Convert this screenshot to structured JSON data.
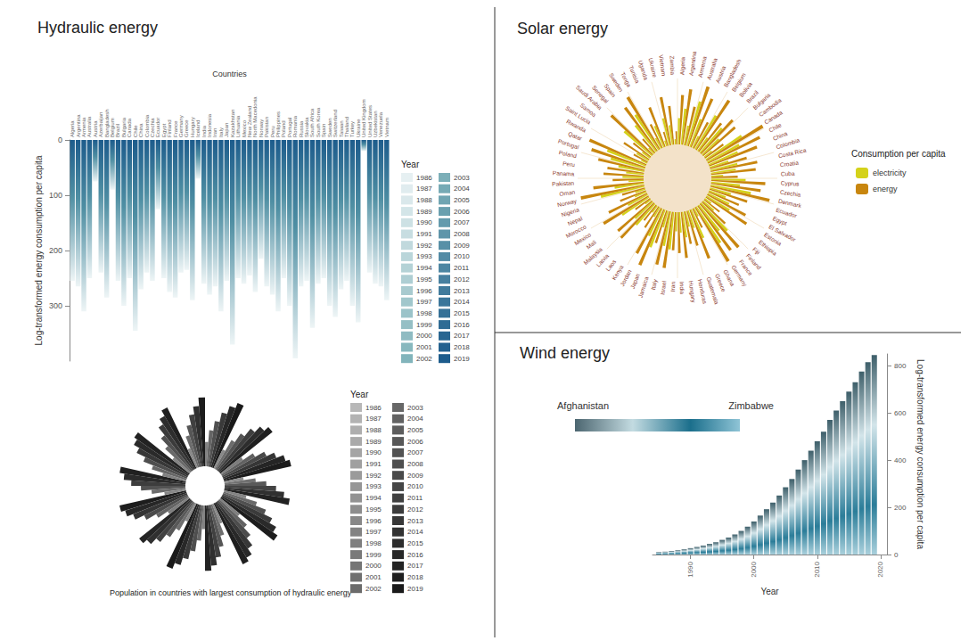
{
  "chart_data": [
    {
      "type": "bar",
      "title": "Hydraulic energy",
      "x_label": "Countries",
      "y_label": "Log-transformed energy consumption per capita",
      "categories": [
        "Algeria",
        "Argentina",
        "Armenia",
        "Australia",
        "Austria",
        "Azerbaijan",
        "Bangladesh",
        "Belgium",
        "Brazil",
        "Bulgaria",
        "Canada",
        "Chile",
        "China",
        "Colombia",
        "Czechia",
        "Ecuador",
        "Egypt",
        "Finland",
        "France",
        "Germany",
        "Greece",
        "Hungary",
        "Iceland",
        "India",
        "Indonesia",
        "Iran",
        "Italy",
        "Japan",
        "Kazakhstan",
        "Lithuania",
        "Mexico",
        "New Zealand",
        "North Macedonia",
        "Norway",
        "Pakistan",
        "Peru",
        "Philippines",
        "Poland",
        "Portugal",
        "Romania",
        "Russia",
        "Slovakia",
        "South Africa",
        "South Korea",
        "Spain",
        "Sweden",
        "Switzerland",
        "Taiwan",
        "Thailand",
        "Turkey",
        "Ukraine",
        "United Kingdom",
        "United States",
        "Uzbekistan",
        "Venezuela",
        "Vietnam"
      ],
      "values": [
        255,
        265,
        310,
        250,
        75,
        240,
        285,
        90,
        255,
        300,
        250,
        345,
        270,
        240,
        255,
        125,
        250,
        275,
        285,
        240,
        235,
        290,
        70,
        260,
        280,
        265,
        310,
        255,
        370,
        250,
        260,
        245,
        275,
        215,
        265,
        280,
        310,
        250,
        300,
        395,
        265,
        255,
        340,
        260,
        250,
        300,
        320,
        270,
        255,
        300,
        330,
        20,
        240,
        260,
        265,
        290
      ],
      "ylim": [
        0,
        400
      ],
      "yticks": [
        0,
        100,
        200,
        300
      ],
      "grid": false,
      "legend_title": "Year",
      "legend_items": [
        1986,
        1987,
        1988,
        1989,
        1990,
        1991,
        1992,
        1993,
        1994,
        1995,
        1996,
        1997,
        1998,
        1999,
        2000,
        2001,
        2002,
        2003,
        2004,
        2005,
        2006,
        2007,
        2008,
        2009,
        2010,
        2011,
        2012,
        2013,
        2014,
        2015,
        2016,
        2017,
        2018,
        2019
      ]
    },
    {
      "type": "polar_bar",
      "title": "Population in countries with largest consumption of hydraulic energy",
      "tick_labels": false,
      "values": [
        35,
        52,
        66,
        80,
        92,
        100,
        30,
        48,
        63,
        77,
        88,
        96,
        38,
        55,
        70,
        82,
        93,
        99,
        28,
        45,
        60,
        74,
        86,
        95,
        33,
        50,
        66,
        79,
        90,
        98,
        36,
        54,
        68,
        81,
        91,
        97,
        30,
        47,
        62,
        76,
        87,
        94,
        34,
        51,
        67,
        80,
        91,
        100,
        29,
        46,
        61,
        75,
        86,
        93,
        37,
        53,
        69,
        83,
        92,
        98,
        31,
        49,
        64,
        78,
        89,
        96,
        35,
        52,
        67,
        81,
        90,
        95,
        32,
        50,
        65,
        79,
        88,
        97,
        30,
        48,
        62,
        76,
        87,
        99
      ],
      "legend_title": "Year",
      "legend_items": [
        1986,
        1987,
        1988,
        1989,
        1990,
        1991,
        1992,
        1993,
        1994,
        1995,
        1996,
        1997,
        1998,
        1999,
        2000,
        2001,
        2002,
        2003,
        2004,
        2005,
        2006,
        2007,
        2008,
        2009,
        2010,
        2011,
        2012,
        2013,
        2014,
        2015,
        2016,
        2017,
        2018,
        2019
      ]
    },
    {
      "type": "polar_bar",
      "title": "Solar energy",
      "tick_labels": "x",
      "legend": "right",
      "legend_title": "Consumption per capita",
      "categories": [
        "Algeria",
        "Argentina",
        "Armenia",
        "Australia",
        "Austria",
        "Bangladesh",
        "Belgium",
        "Bolivia",
        "Brazil",
        "Bulgaria",
        "Cambodia",
        "Canada",
        "Chile",
        "China",
        "Colombia",
        "Costa Rica",
        "Croatia",
        "Cuba",
        "Cyprus",
        "Czechia",
        "Denmark",
        "Ecuador",
        "Egypt",
        "El Salvador",
        "Estonia",
        "Ethiopia",
        "Fiji",
        "Finland",
        "France",
        "Germany",
        "Ghana",
        "Greece",
        "Guatemala",
        "Honduras",
        "Hungary",
        "India",
        "Iran",
        "Israel",
        "Italy",
        "Jamaica",
        "Japan",
        "Jordan",
        "Kenya",
        "Laos",
        "Latvia",
        "Malaysia",
        "Mali",
        "Mexico",
        "Morocco",
        "Nepal",
        "Nigeria",
        "Norway",
        "Oman",
        "Pakistan",
        "Panama",
        "Peru",
        "Poland",
        "Portugal",
        "Qatar",
        "Rwanda",
        "Saint Lucia",
        "Samoa",
        "Saudi Arabia",
        "Senegal",
        "Spain",
        "Sweden",
        "Tonga",
        "Tunisia",
        "Uganda",
        "Ukraine",
        "Vietnam",
        "Zambia"
      ],
      "series": [
        {
          "name": "electricity",
          "color": "#d4d21a",
          "values": [
            40,
            55,
            30,
            70,
            45,
            20,
            60,
            25,
            50,
            35,
            15,
            65,
            55,
            48,
            30,
            42,
            38,
            18,
            52,
            44,
            62,
            33,
            27,
            36,
            41,
            12,
            22,
            58,
            50,
            66,
            14,
            47,
            28,
            24,
            39,
            31,
            29,
            57,
            53,
            26,
            61,
            46,
            17,
            13,
            43,
            37,
            11,
            49,
            34,
            19,
            16,
            68,
            45,
            23,
            32,
            27,
            40,
            54,
            63,
            10,
            21,
            15,
            56,
            12,
            51,
            64,
            18,
            35,
            9,
            42,
            30,
            8
          ]
        },
        {
          "name": "energy",
          "color": "#c8860f",
          "values": [
            75,
            85,
            60,
            95,
            80,
            45,
            90,
            55,
            70,
            65,
            35,
            100,
            88,
            78,
            58,
            72,
            68,
            40,
            82,
            76,
            92,
            60,
            50,
            66,
            74,
            30,
            48,
            88,
            84,
            96,
            32,
            79,
            55,
            50,
            70,
            62,
            58,
            86,
            83,
            52,
            92,
            78,
            38,
            30,
            73,
            69,
            28,
            80,
            65,
            42,
            36,
            98,
            77,
            47,
            61,
            56,
            72,
            86,
            94,
            24,
            46,
            34,
            87,
            28,
            82,
            93,
            40,
            64,
            22,
            74,
            59,
            20
          ]
        }
      ]
    },
    {
      "type": "bar",
      "title": "Wind energy",
      "x_label": "Year",
      "y_label": "Log-transformed energy consumption per capita",
      "x": [
        1985,
        1986,
        1987,
        1988,
        1989,
        1990,
        1991,
        1992,
        1993,
        1994,
        1995,
        1996,
        1997,
        1998,
        1999,
        2000,
        2001,
        2002,
        2003,
        2004,
        2005,
        2006,
        2007,
        2008,
        2009,
        2010,
        2011,
        2012,
        2013,
        2014,
        2015,
        2016,
        2017,
        2018,
        2019
      ],
      "values": [
        10,
        12,
        15,
        18,
        22,
        27,
        32,
        38,
        45,
        52,
        62,
        72,
        85,
        100,
        118,
        140,
        165,
        192,
        220,
        250,
        285,
        320,
        360,
        400,
        440,
        480,
        520,
        570,
        610,
        650,
        690,
        730,
        775,
        815,
        845
      ],
      "xlim": [
        1984,
        2021
      ],
      "xticks": [
        1990,
        2000,
        2010,
        2020
      ],
      "ylim": [
        0,
        850
      ],
      "yticks": [
        0,
        200,
        400,
        600,
        800
      ],
      "grid": false,
      "color_bar_labels": [
        "Afghanistan",
        "Zimbabwe"
      ]
    }
  ]
}
